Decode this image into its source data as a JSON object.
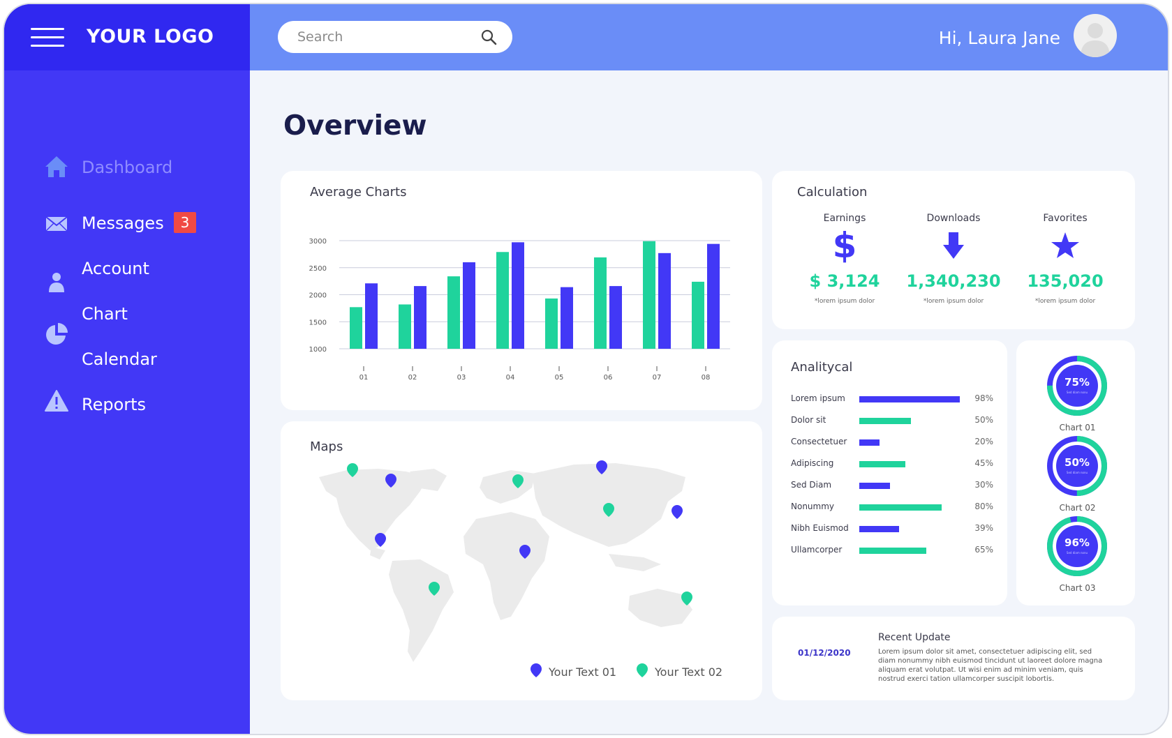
{
  "app": {
    "logo": "YOUR LOGO",
    "greeting": "Hi, Laura Jane"
  },
  "search": {
    "placeholder": "Search"
  },
  "sidebar": {
    "items": [
      {
        "label": "Dashboard",
        "icon": "home-icon",
        "active": true
      },
      {
        "label": "Messages",
        "icon": "mail-icon",
        "badge": "3"
      },
      {
        "label": "Account",
        "icon": "user-icon"
      },
      {
        "label": "Chart",
        "icon": "pie-chart-icon"
      },
      {
        "label": "Calendar",
        "icon": "calendar-icon"
      },
      {
        "label": "Reports",
        "icon": "warning-icon"
      }
    ]
  },
  "page": {
    "title": "Overview"
  },
  "average_charts": {
    "title": "Average Charts"
  },
  "chart_data": {
    "type": "bar",
    "title": "Average Charts",
    "categories": [
      "01",
      "02",
      "03",
      "04",
      "05",
      "06",
      "07",
      "08"
    ],
    "y_ticks": [
      "3000",
      "2500",
      "2000",
      "1500",
      "1000"
    ],
    "ylim": [
      1000,
      3000
    ],
    "grid": true,
    "colors": [
      "#1fd39c",
      "#4238f6"
    ],
    "series": [
      {
        "values": [
          1770,
          1820,
          2340,
          2790,
          1930,
          2690,
          2990,
          2240
        ]
      },
      {
        "values": [
          2210,
          2160,
          2600,
          2970,
          2140,
          2160,
          2770,
          2940
        ]
      }
    ]
  },
  "calculation": {
    "title": "Calculation",
    "items": [
      {
        "label": "Earnings",
        "value": "$ 3,124",
        "note": "*lorem ipsum dolor",
        "icon": "dollar-icon"
      },
      {
        "label": "Downloads",
        "value": "1,340,230",
        "note": "*lorem ipsum dolor",
        "icon": "arrow-down-icon"
      },
      {
        "label": "Favorites",
        "value": "135,020",
        "note": "*lorem ipsum dolor",
        "icon": "star-icon"
      }
    ]
  },
  "analytical": {
    "title": "Analitycal",
    "rows": [
      {
        "label": "Lorem ipsum",
        "value": 98,
        "pct": "98%",
        "color": "#4238f6"
      },
      {
        "label": "Dolor sit",
        "value": 50,
        "pct": "50%",
        "color": "#1fd39c"
      },
      {
        "label": "Consectetuer",
        "value": 20,
        "pct": "20%",
        "color": "#4238f6"
      },
      {
        "label": "Adipiscing",
        "value": 45,
        "pct": "45%",
        "color": "#1fd39c"
      },
      {
        "label": "Sed Diam",
        "value": 30,
        "pct": "30%",
        "color": "#4238f6"
      },
      {
        "label": "Nonummy",
        "value": 80,
        "pct": "80%",
        "color": "#1fd39c"
      },
      {
        "label": "Nibh Euismod",
        "value": 39,
        "pct": "39%",
        "color": "#4238f6"
      },
      {
        "label": "Ullamcorper",
        "value": 65,
        "pct": "65%",
        "color": "#1fd39c"
      }
    ]
  },
  "donuts": [
    {
      "pct": "75%",
      "value": 75,
      "sub": "Sed diam nonu",
      "label": "Chart 01"
    },
    {
      "pct": "50%",
      "value": 50,
      "sub": "Sed diam nonu",
      "label": "Chart 02"
    },
    {
      "pct": "96%",
      "value": 96,
      "sub": "Sed diam nonu",
      "label": "Chart 03"
    }
  ],
  "maps": {
    "title": "Maps",
    "legend": [
      {
        "label": "Your Text 01",
        "color": "#4238f6"
      },
      {
        "label": "Your Text 02",
        "color": "#1fd39c"
      }
    ]
  },
  "recent_update": {
    "date": "01/12/2020",
    "title": "Recent Update",
    "text": "Lorem ipsum dolor sit amet, consectetuer adipiscing elit, sed diam nonummy nibh euismod tincidunt ut laoreet dolore magna aliquam erat volutpat. Ut wisi enim ad minim veniam, quis nostrud exerci tation ullamcorper suscipit lobortis."
  },
  "colors": {
    "primary": "#4238f6",
    "accent": "#1fd39c",
    "header": "#6a8df7",
    "badge": "#f04a44"
  }
}
